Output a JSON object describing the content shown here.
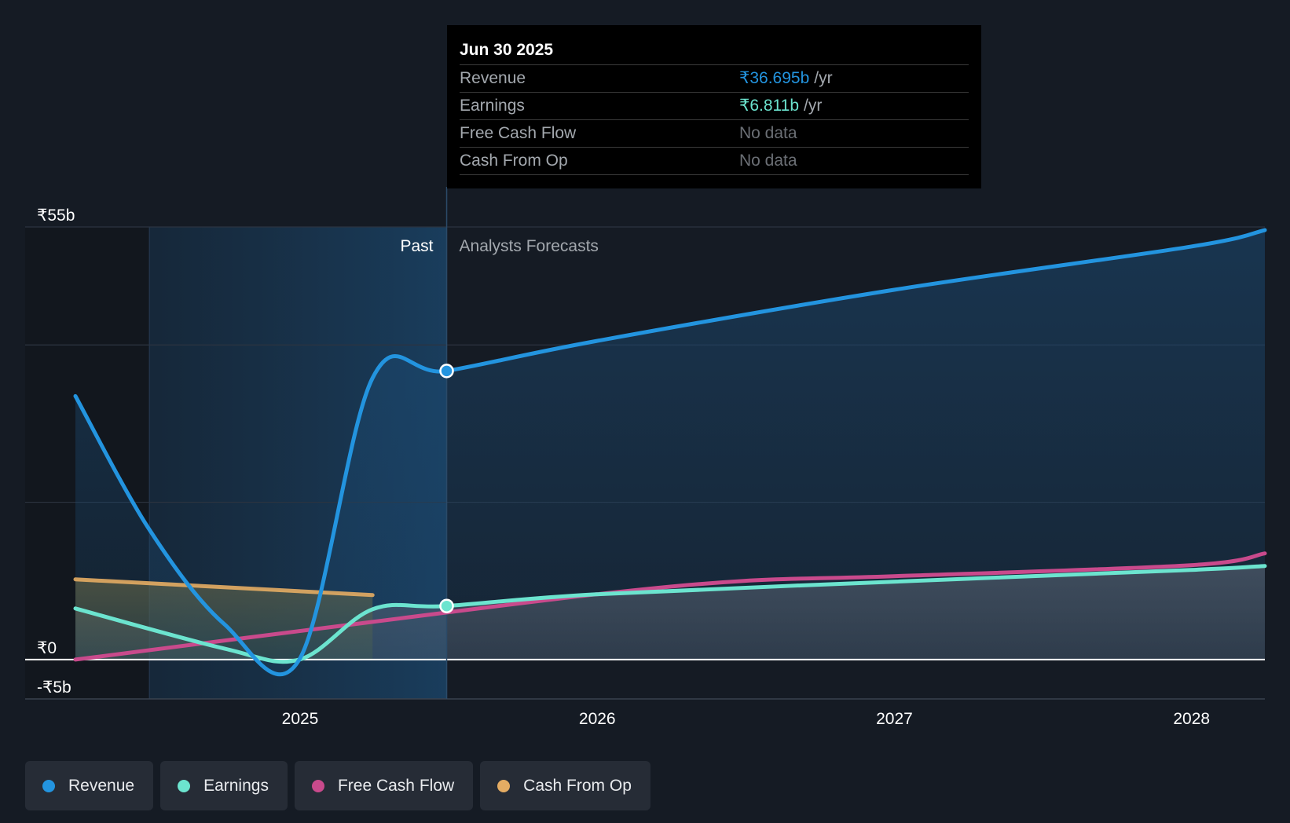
{
  "tooltip": {
    "date": "Jun 30 2025",
    "rows": [
      {
        "label": "Revenue",
        "value": "₹36.695b",
        "unit": "/yr",
        "color": "#2394df"
      },
      {
        "label": "Earnings",
        "value": "₹6.811b",
        "unit": "/yr",
        "color": "#6ce4cf"
      },
      {
        "label": "Free Cash Flow",
        "value": "No data",
        "unit": "",
        "color": ""
      },
      {
        "label": "Cash From Op",
        "value": "No data",
        "unit": "",
        "color": ""
      }
    ]
  },
  "legend": [
    {
      "label": "Revenue",
      "color": "#2394df"
    },
    {
      "label": "Earnings",
      "color": "#6ce4cf"
    },
    {
      "label": "Free Cash Flow",
      "color": "#c94a8c"
    },
    {
      "label": "Cash From Op",
      "color": "#e4ac63"
    }
  ],
  "chart_data": {
    "type": "line",
    "x_range": [
      "2024-03-31",
      "2028-03-31"
    ],
    "ylim": [
      -5,
      55
    ],
    "y_ticks": [
      {
        "value": 55,
        "label": "₹55b"
      },
      {
        "value": 0,
        "label": "₹0"
      },
      {
        "value": -5,
        "label": "-₹5b"
      }
    ],
    "x_ticks": [
      {
        "date": "2025-01-01",
        "label": "2025"
      },
      {
        "date": "2026-01-01",
        "label": "2026"
      },
      {
        "date": "2027-01-01",
        "label": "2027"
      },
      {
        "date": "2028-01-01",
        "label": "2028"
      }
    ],
    "past_label": "Past",
    "forecast_label": "Analysts Forecasts",
    "past_start": "2024-06-30",
    "divider_date": "2025-06-30",
    "grid": true,
    "series": [
      {
        "name": "Revenue",
        "color": "#2394df",
        "points": [
          [
            "2024-03-31",
            33.5
          ],
          [
            "2024-06-30",
            16.5
          ],
          [
            "2024-09-30",
            4.5
          ],
          [
            "2024-12-31",
            0.0
          ],
          [
            "2025-03-31",
            35.8
          ],
          [
            "2025-06-30",
            36.695
          ],
          [
            "2025-12-31",
            40.5
          ],
          [
            "2026-12-31",
            47.0
          ],
          [
            "2027-12-31",
            52.5
          ],
          [
            "2028-03-31",
            54.6
          ]
        ]
      },
      {
        "name": "Earnings",
        "color": "#6ce4cf",
        "points": [
          [
            "2024-03-31",
            6.5
          ],
          [
            "2024-09-30",
            1.4
          ],
          [
            "2024-12-31",
            0.0
          ],
          [
            "2025-03-31",
            6.4
          ],
          [
            "2025-06-30",
            6.811
          ],
          [
            "2025-12-31",
            8.3
          ],
          [
            "2026-12-31",
            9.9
          ],
          [
            "2027-12-31",
            11.4
          ],
          [
            "2028-03-31",
            11.9
          ]
        ]
      },
      {
        "name": "Free Cash Flow",
        "color": "#c94a8c",
        "points": [
          [
            "2024-03-31",
            0.0
          ],
          [
            "2025-03-31",
            4.8
          ],
          [
            "2025-12-31",
            8.3
          ],
          [
            "2026-06-30",
            10.0
          ],
          [
            "2026-12-31",
            10.6
          ],
          [
            "2027-12-31",
            12.0
          ],
          [
            "2028-03-31",
            13.5
          ]
        ]
      },
      {
        "name": "Cash From Op",
        "color": "#e4ac63",
        "points": [
          [
            "2024-03-31",
            10.2
          ],
          [
            "2025-03-31",
            8.2
          ]
        ]
      }
    ],
    "highlighted_date": "2025-06-30"
  }
}
